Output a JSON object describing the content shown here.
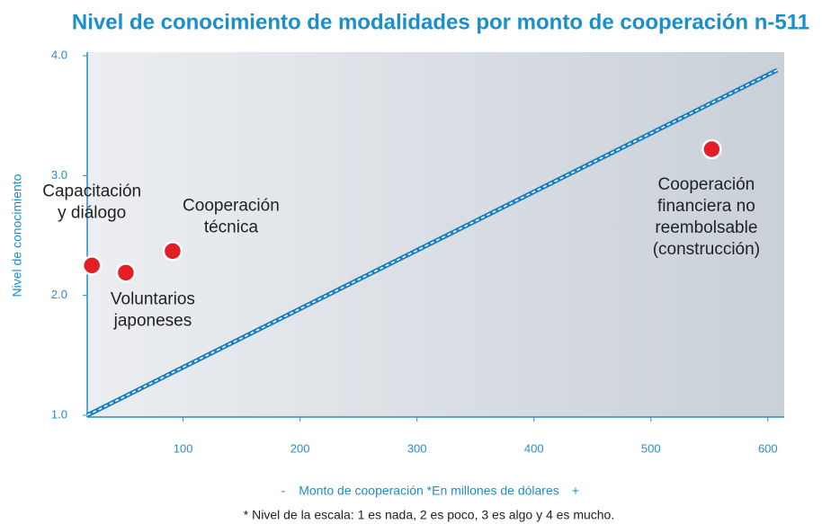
{
  "chart_data": {
    "type": "scatter",
    "title": "Nivel de conocimiento de modalidades por monto de cooperación n-511",
    "x_label": "Monto de cooperación *En millones de dólares",
    "x_minus": "-",
    "x_plus": "+",
    "y_label": "Nivel de conocimiento",
    "footnote": "* Nivel de la escala: 1 es nada, 2 es poco, 3 es algo y 4 es mucho.",
    "xlim": [
      18,
      614
    ],
    "ylim": [
      1.0,
      4.0
    ],
    "xticks": [
      100,
      200,
      300,
      400,
      500,
      600
    ],
    "yticks": [
      {
        "value": 1,
        "label": "1.0"
      },
      {
        "value": 2,
        "label": "2.0"
      },
      {
        "value": 3,
        "label": "3.0"
      },
      {
        "value": 4,
        "label": "4.0"
      }
    ],
    "color": "#e41e26",
    "trend_line": {
      "x": [
        18,
        608
      ],
      "y": [
        1.0,
        3.88
      ],
      "color": "#1a7fc1"
    },
    "points": [
      {
        "label": [
          "Capacitación",
          "y diálogo"
        ],
        "x": 22,
        "y": 2.25
      },
      {
        "label": [
          "Voluntarios",
          "japoneses"
        ],
        "x": 51,
        "y": 2.19
      },
      {
        "label": [
          "Cooperación",
          "técnica"
        ],
        "x": 91,
        "y": 2.37
      },
      {
        "label": [
          "Cooperación",
          "financiera no",
          "reembolsable",
          "(construcción)"
        ],
        "x": 552,
        "y": 3.22
      }
    ]
  }
}
